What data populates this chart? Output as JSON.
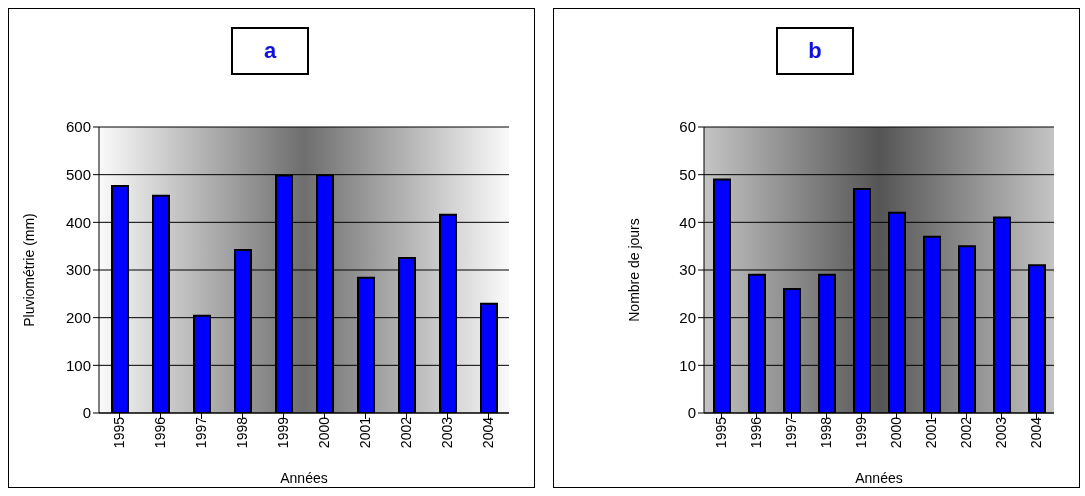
{
  "chart_data": [
    {
      "type": "bar",
      "title": "a",
      "xlabel": "Années",
      "ylabel": "Pluviométrie (mm)",
      "categories": [
        "1995",
        "1996",
        "1997",
        "1998",
        "1999",
        "2000",
        "2001",
        "2002",
        "2003",
        "2004"
      ],
      "values": [
        476,
        456,
        204,
        342,
        498,
        499,
        284,
        325,
        416,
        229
      ],
      "color": "#0000ff",
      "ylim": [
        0,
        600
      ],
      "yticks": [
        0,
        100,
        200,
        300,
        400,
        500,
        600
      ],
      "grid": "y"
    },
    {
      "type": "bar",
      "title": "b",
      "xlabel": "Années",
      "ylabel": "Nombre de jours",
      "categories": [
        "1995",
        "1996",
        "1997",
        "1998",
        "1999",
        "2000",
        "2001",
        "2002",
        "2003",
        "2004"
      ],
      "values": [
        49,
        29,
        26,
        29,
        47,
        42,
        37,
        35,
        41,
        31
      ],
      "color": "#0000ff",
      "ylim": [
        0,
        60
      ],
      "yticks": [
        0,
        10,
        20,
        30,
        40,
        50,
        60
      ],
      "grid": "y"
    }
  ]
}
